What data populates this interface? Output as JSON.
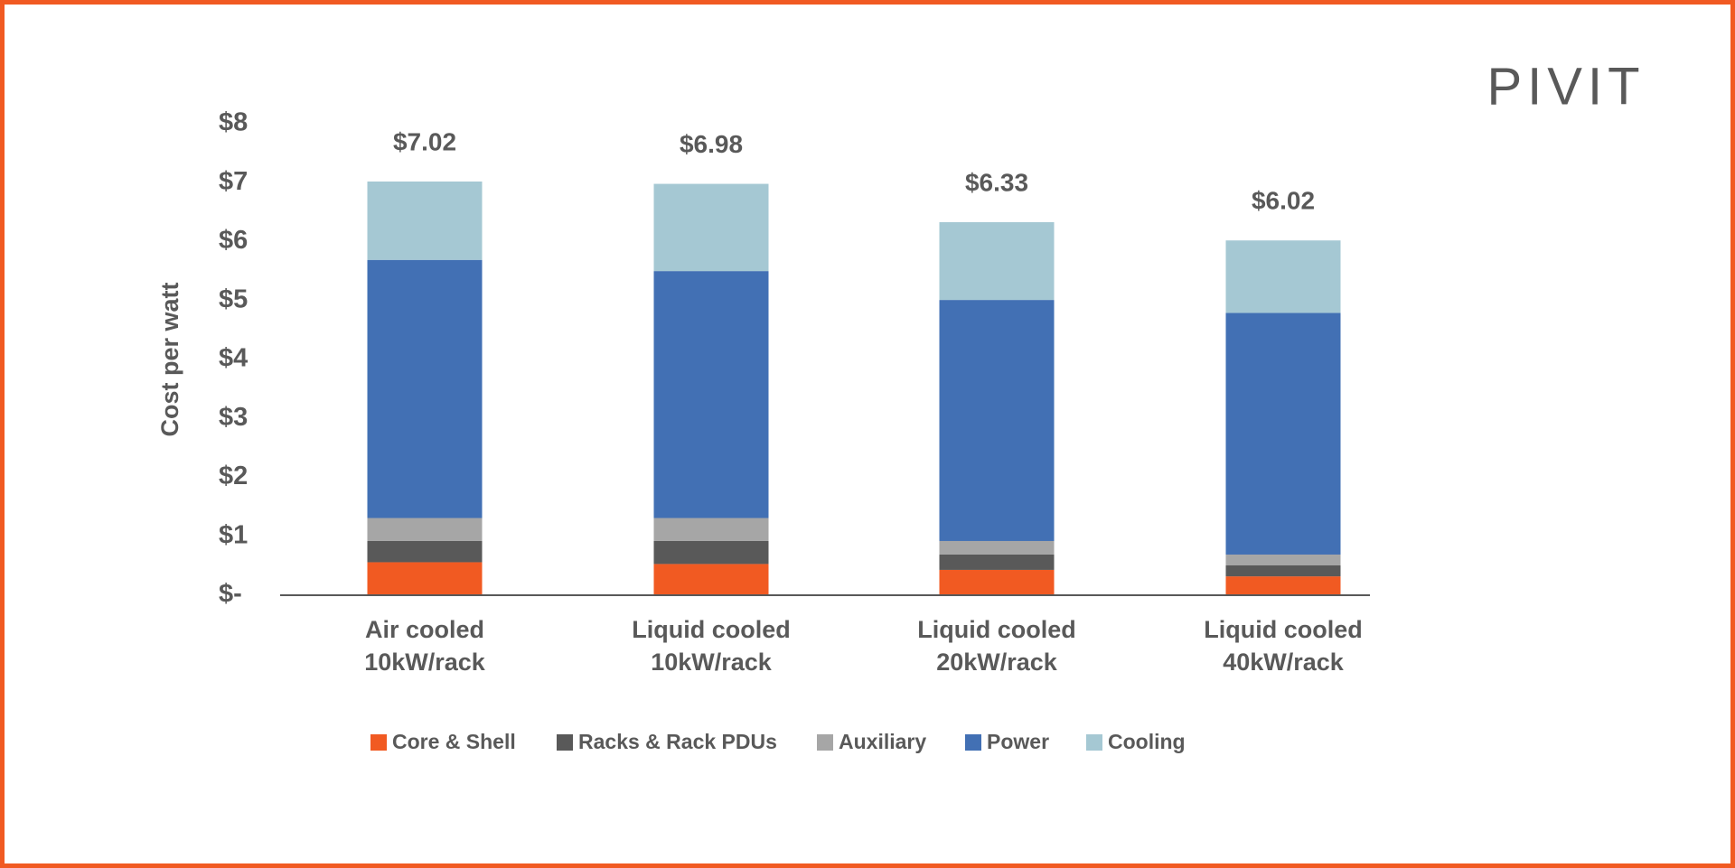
{
  "chart_data": {
    "type": "stacked-bar",
    "logo": "PIVIT",
    "y_axis_label": "Cost per watt",
    "categories": [
      [
        "Air cooled",
        "10kW/rack"
      ],
      [
        "Liquid cooled",
        "10kW/rack"
      ],
      [
        "Liquid cooled",
        "20kW/rack"
      ],
      [
        "Liquid cooled",
        "40kW/rack"
      ]
    ],
    "series": [
      {
        "name": "Core & Shell",
        "color": "#f15a22",
        "values": [
          0.56,
          0.53,
          0.43,
          0.32
        ]
      },
      {
        "name": "Racks & Rack PDUs",
        "color": "#595959",
        "values": [
          0.36,
          0.39,
          0.26,
          0.19
        ]
      },
      {
        "name": "Auxiliary",
        "color": "#a6a6a6",
        "values": [
          0.39,
          0.39,
          0.23,
          0.18
        ]
      },
      {
        "name": "Power",
        "color": "#4270b4",
        "values": [
          4.38,
          4.19,
          4.09,
          4.1
        ]
      },
      {
        "name": "Cooling",
        "color": "#a5c8d3",
        "values": [
          1.33,
          1.48,
          1.32,
          1.23
        ]
      }
    ],
    "totals": [
      7.02,
      6.98,
      6.33,
      6.02
    ],
    "total_labels": [
      "$7.02",
      "$6.98",
      "$6.33",
      "$6.02"
    ],
    "ylim": [
      0,
      8
    ],
    "yticks": [
      {
        "value": 0,
        "label": "$-"
      },
      {
        "value": 1,
        "label": "$1"
      },
      {
        "value": 2,
        "label": "$2"
      },
      {
        "value": 3,
        "label": "$3"
      },
      {
        "value": 4,
        "label": "$4"
      },
      {
        "value": 5,
        "label": "$5"
      },
      {
        "value": 6,
        "label": "$6"
      },
      {
        "value": 7,
        "label": "$7"
      },
      {
        "value": 8,
        "label": "$8"
      }
    ],
    "grid": false,
    "legend": "bottom"
  }
}
